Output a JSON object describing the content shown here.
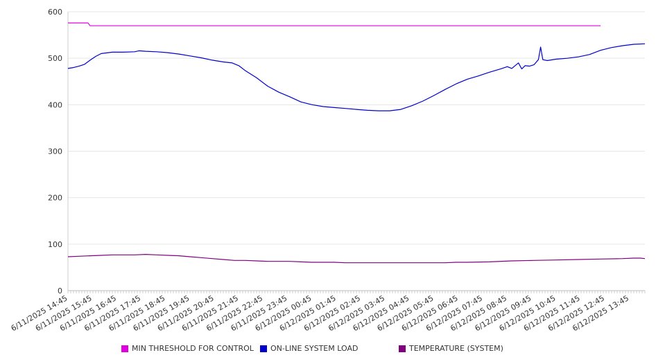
{
  "chart_data": {
    "type": "line",
    "title": "",
    "xlabel": "",
    "ylabel": "",
    "ylim": [
      0,
      600
    ],
    "y_ticks": [
      "0",
      "100",
      "200",
      "300",
      "400",
      "500",
      "600"
    ],
    "x_ticks": [
      "6/11/2025 14:45",
      "6/11/2025 15:45",
      "6/11/2025 16:45",
      "6/11/2025 17:45",
      "6/11/2025 18:45",
      "6/11/2025 19:45",
      "6/11/2025 20:45",
      "6/11/2025 21:45",
      "6/11/2025 22:45",
      "6/11/2025 23:45",
      "6/12/2025 00:45",
      "6/12/2025 01:45",
      "6/12/2025 02:45",
      "6/12/2025 03:45",
      "6/12/2025 04:45",
      "6/12/2025 05:45",
      "6/12/2025 06:45",
      "6/12/2025 07:45",
      "6/12/2025 08:45",
      "6/12/2025 09:45",
      "6/12/2025 10:45",
      "6/12/2025 11:45",
      "6/12/2025 12:45",
      "6/12/2025 13:45"
    ],
    "grid": true,
    "legend_position": "bottom",
    "series": [
      {
        "name": "MIN THRESHOLD FOR CONTROL",
        "color": "#e000e0",
        "points": [
          [
            0,
            576
          ],
          [
            0.9,
            576
          ],
          [
            1.0,
            570
          ],
          [
            24.0,
            570
          ]
        ]
      },
      {
        "name": "ON-LINE SYSTEM LOAD",
        "color": "#0000cc",
        "points": [
          [
            0,
            478
          ],
          [
            0.25,
            480
          ],
          [
            0.5,
            483
          ],
          [
            0.75,
            487
          ],
          [
            1.0,
            496
          ],
          [
            1.25,
            504
          ],
          [
            1.5,
            510
          ],
          [
            2.0,
            513
          ],
          [
            2.5,
            513
          ],
          [
            3.0,
            514
          ],
          [
            3.2,
            516
          ],
          [
            3.5,
            515
          ],
          [
            4.0,
            514
          ],
          [
            4.5,
            512
          ],
          [
            5.0,
            509
          ],
          [
            5.5,
            505
          ],
          [
            6.0,
            501
          ],
          [
            6.5,
            496
          ],
          [
            7.0,
            492
          ],
          [
            7.4,
            490
          ],
          [
            7.7,
            484
          ],
          [
            8.0,
            473
          ],
          [
            8.5,
            458
          ],
          [
            9.0,
            440
          ],
          [
            9.5,
            427
          ],
          [
            10.0,
            417
          ],
          [
            10.5,
            406
          ],
          [
            11.0,
            400
          ],
          [
            11.5,
            396
          ],
          [
            12.0,
            394
          ],
          [
            12.5,
            392
          ],
          [
            13.0,
            390
          ],
          [
            13.5,
            388
          ],
          [
            14.0,
            387
          ],
          [
            14.5,
            387
          ],
          [
            15.0,
            390
          ],
          [
            15.5,
            398
          ],
          [
            16.0,
            408
          ],
          [
            16.5,
            420
          ],
          [
            17.0,
            433
          ],
          [
            17.5,
            445
          ],
          [
            18.0,
            455
          ],
          [
            18.5,
            462
          ],
          [
            19.0,
            470
          ],
          [
            19.5,
            477
          ],
          [
            19.8,
            482
          ],
          [
            20.0,
            478
          ],
          [
            20.3,
            490
          ],
          [
            20.45,
            477
          ],
          [
            20.6,
            484
          ],
          [
            20.8,
            483
          ],
          [
            21.0,
            486
          ],
          [
            21.2,
            497
          ],
          [
            21.3,
            524
          ],
          [
            21.4,
            497
          ],
          [
            21.6,
            495
          ],
          [
            22.0,
            498
          ],
          [
            22.5,
            500
          ],
          [
            23.0,
            503
          ],
          [
            23.5,
            508
          ],
          [
            24.0,
            517
          ],
          [
            24.5,
            523
          ],
          [
            25.0,
            527
          ],
          [
            25.5,
            530
          ],
          [
            26.0,
            531
          ]
        ]
      },
      {
        "name": "TEMPERATURE (SYSTEM)",
        "color": "#800080",
        "points": [
          [
            0,
            73
          ],
          [
            0.5,
            74
          ],
          [
            1.0,
            75
          ],
          [
            1.5,
            76
          ],
          [
            2.0,
            77
          ],
          [
            2.5,
            77
          ],
          [
            3.0,
            77
          ],
          [
            3.5,
            78
          ],
          [
            4.0,
            77
          ],
          [
            4.5,
            76
          ],
          [
            5.0,
            75
          ],
          [
            5.5,
            73
          ],
          [
            6.0,
            71
          ],
          [
            6.5,
            69
          ],
          [
            7.0,
            67
          ],
          [
            7.5,
            65
          ],
          [
            8.0,
            65
          ],
          [
            8.5,
            64
          ],
          [
            9.0,
            63
          ],
          [
            10.0,
            63
          ],
          [
            10.5,
            62
          ],
          [
            11.0,
            61
          ],
          [
            12.0,
            61
          ],
          [
            12.5,
            60
          ],
          [
            13.0,
            60
          ],
          [
            14.0,
            60
          ],
          [
            15.0,
            60
          ],
          [
            16.0,
            60
          ],
          [
            17.0,
            60
          ],
          [
            17.5,
            61
          ],
          [
            18.0,
            61
          ],
          [
            19.0,
            62
          ],
          [
            20.0,
            64
          ],
          [
            21.0,
            65
          ],
          [
            22.0,
            66
          ],
          [
            23.0,
            67
          ],
          [
            24.0,
            68
          ],
          [
            25.0,
            69
          ],
          [
            25.5,
            70
          ],
          [
            25.8,
            70
          ],
          [
            26.0,
            69
          ]
        ]
      }
    ]
  }
}
